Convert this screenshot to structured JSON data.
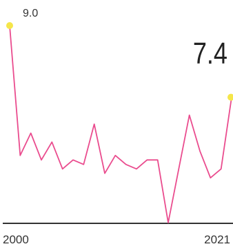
{
  "chart_data": {
    "type": "line",
    "x": [
      2000,
      2001,
      2002,
      2003,
      2004,
      2005,
      2006,
      2007,
      2008,
      2009,
      2010,
      2011,
      2012,
      2013,
      2014,
      2015,
      2016,
      2017,
      2018,
      2019,
      2020,
      2021
    ],
    "series": [
      {
        "values": [
          9.0,
          6.1,
          6.6,
          6.0,
          6.4,
          5.8,
          6.0,
          5.9,
          6.8,
          5.7,
          6.1,
          5.9,
          5.8,
          6.0,
          6.0,
          4.6,
          5.8,
          7.0,
          6.2,
          5.6,
          5.8,
          7.4
        ],
        "color": "#ea4c8e"
      }
    ],
    "xticks": [
      "2000",
      "2021"
    ],
    "ylim": [
      4.6,
      9.0
    ],
    "grid": false,
    "annotations": {
      "first_value": "9.0",
      "last_value": "7.4"
    },
    "marker_color": "#f5e64a",
    "baseline_color": "#333333"
  }
}
